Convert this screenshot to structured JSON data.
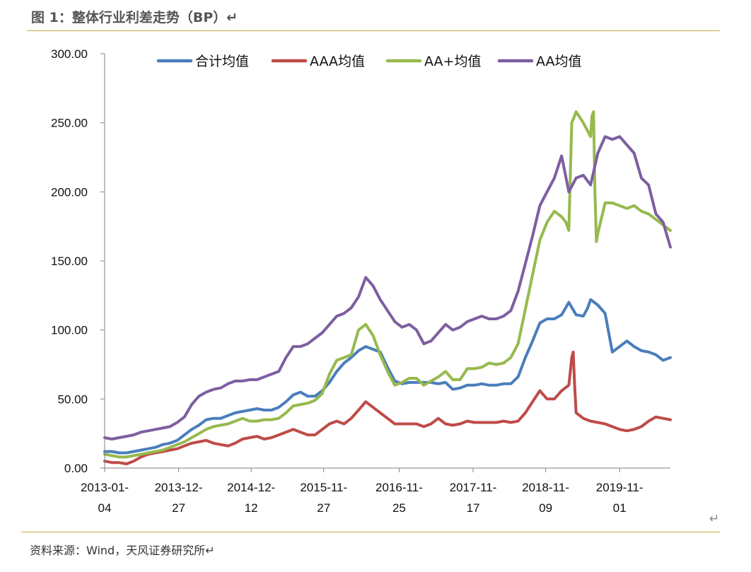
{
  "figure": {
    "title": "图 1：整体行业利差走势（BP）↵",
    "source": "资料来源：Wind，天风证券研究所↵",
    "return_mark": "↵"
  },
  "chart_data": {
    "type": "line",
    "title": "整体行业利差走势（BP）",
    "xlabel": "",
    "ylabel": "",
    "ylim": [
      0,
      300
    ],
    "yticks": [
      "0.00",
      "50.00",
      "100.00",
      "150.00",
      "200.00",
      "250.00",
      "300.00"
    ],
    "xticks": [
      {
        "label": "2013-01-\n04",
        "t": 0
      },
      {
        "label": "2013-12-\n27",
        "t": 51
      },
      {
        "label": "2014-12-\n12",
        "t": 101
      },
      {
        "label": "2015-11-\n27",
        "t": 151
      },
      {
        "label": "2016-11-\n25",
        "t": 203
      },
      {
        "label": "2017-11-\n17",
        "t": 254
      },
      {
        "label": "2018-11-\n09",
        "t": 304
      },
      {
        "label": "2019-11-\n01",
        "t": 355
      }
    ],
    "t_max": 390,
    "legend_position": "top",
    "series": [
      {
        "name": "合计均值",
        "color": "#4a7ebb",
        "x": [
          0,
          5,
          10,
          15,
          20,
          25,
          30,
          35,
          40,
          45,
          50,
          55,
          60,
          65,
          70,
          75,
          80,
          85,
          90,
          95,
          100,
          105,
          110,
          115,
          120,
          125,
          130,
          135,
          140,
          145,
          150,
          155,
          160,
          165,
          170,
          175,
          180,
          185,
          190,
          195,
          200,
          205,
          210,
          215,
          220,
          225,
          230,
          235,
          240,
          245,
          250,
          255,
          260,
          265,
          270,
          275,
          280,
          285,
          290,
          295,
          300,
          305,
          310,
          315,
          320,
          325,
          330,
          333,
          335,
          340,
          345,
          350,
          355,
          360,
          365,
          370,
          375,
          380,
          385,
          390
        ],
        "y": [
          12,
          12,
          11,
          11,
          12,
          13,
          14,
          15,
          17,
          18,
          20,
          24,
          28,
          31,
          35,
          36,
          36,
          38,
          40,
          41,
          42,
          43,
          42,
          42,
          44,
          48,
          53,
          55,
          52,
          52,
          56,
          62,
          70,
          76,
          80,
          85,
          88,
          86,
          84,
          73,
          63,
          61,
          62,
          62,
          62,
          62,
          61,
          62,
          57,
          58,
          60,
          60,
          61,
          60,
          60,
          61,
          61,
          66,
          80,
          92,
          105,
          108,
          108,
          111,
          120,
          111,
          110,
          116,
          122,
          118,
          112,
          84,
          88,
          92,
          88,
          85,
          84,
          82,
          78,
          80
        ]
      },
      {
        "name": "AAA均值",
        "color": "#be4b48",
        "x": [
          0,
          5,
          10,
          15,
          20,
          25,
          30,
          35,
          40,
          45,
          50,
          55,
          60,
          65,
          70,
          75,
          80,
          85,
          90,
          95,
          100,
          105,
          110,
          115,
          120,
          125,
          130,
          135,
          140,
          145,
          150,
          155,
          160,
          165,
          170,
          175,
          180,
          185,
          190,
          195,
          200,
          205,
          210,
          215,
          220,
          225,
          230,
          235,
          240,
          245,
          250,
          255,
          260,
          265,
          270,
          275,
          280,
          285,
          290,
          295,
          300,
          305,
          310,
          315,
          320,
          321,
          322,
          323,
          324,
          325,
          330,
          335,
          340,
          345,
          350,
          355,
          360,
          365,
          370,
          375,
          380,
          385,
          390
        ],
        "y": [
          5,
          4,
          4,
          3,
          5,
          8,
          10,
          11,
          12,
          13,
          14,
          16,
          18,
          19,
          20,
          18,
          17,
          16,
          18,
          21,
          22,
          23,
          21,
          22,
          24,
          26,
          28,
          26,
          24,
          24,
          28,
          32,
          34,
          32,
          36,
          42,
          48,
          44,
          40,
          36,
          32,
          32,
          32,
          32,
          30,
          32,
          36,
          32,
          31,
          32,
          34,
          33,
          33,
          33,
          33,
          34,
          33,
          34,
          40,
          48,
          56,
          50,
          50,
          56,
          60,
          70,
          80,
          84,
          60,
          40,
          36,
          34,
          33,
          32,
          30,
          28,
          27,
          28,
          30,
          34,
          37,
          36,
          35
        ]
      },
      {
        "name": "AA+均值",
        "color": "#97b94e",
        "x": [
          0,
          5,
          10,
          15,
          20,
          25,
          30,
          35,
          40,
          45,
          50,
          55,
          60,
          65,
          70,
          75,
          80,
          85,
          90,
          95,
          100,
          105,
          110,
          115,
          120,
          125,
          130,
          135,
          140,
          145,
          150,
          155,
          160,
          165,
          170,
          175,
          180,
          185,
          190,
          195,
          200,
          205,
          210,
          215,
          220,
          225,
          230,
          235,
          240,
          245,
          250,
          255,
          260,
          265,
          270,
          275,
          280,
          285,
          290,
          295,
          300,
          305,
          310,
          315,
          318,
          320,
          322,
          324,
          325,
          330,
          335,
          336,
          337,
          338,
          339,
          340,
          345,
          350,
          355,
          360,
          365,
          370,
          375,
          380,
          385,
          390
        ],
        "y": [
          10,
          9,
          8,
          8,
          9,
          10,
          11,
          12,
          13,
          15,
          17,
          19,
          22,
          25,
          28,
          30,
          31,
          32,
          34,
          36,
          34,
          34,
          35,
          35,
          36,
          40,
          45,
          46,
          47,
          49,
          54,
          68,
          78,
          80,
          82,
          100,
          104,
          96,
          82,
          70,
          60,
          62,
          65,
          65,
          60,
          63,
          66,
          70,
          64,
          64,
          72,
          72,
          73,
          76,
          75,
          76,
          80,
          90,
          115,
          140,
          165,
          178,
          186,
          182,
          178,
          172,
          250,
          255,
          258,
          250,
          240,
          255,
          258,
          200,
          164,
          170,
          192,
          192,
          190,
          188,
          190,
          186,
          184,
          180,
          176,
          172
        ]
      },
      {
        "name": "AA均值",
        "color": "#7d5fa0",
        "x": [
          0,
          5,
          10,
          15,
          20,
          25,
          30,
          35,
          40,
          45,
          50,
          55,
          60,
          65,
          70,
          75,
          80,
          85,
          90,
          95,
          100,
          105,
          110,
          115,
          120,
          125,
          130,
          135,
          140,
          145,
          150,
          155,
          160,
          165,
          170,
          175,
          180,
          185,
          190,
          195,
          200,
          205,
          210,
          215,
          220,
          225,
          230,
          235,
          240,
          245,
          250,
          255,
          260,
          265,
          270,
          275,
          280,
          285,
          290,
          295,
          300,
          305,
          310,
          315,
          320,
          325,
          330,
          335,
          340,
          345,
          350,
          355,
          360,
          365,
          370,
          375,
          380,
          385,
          390
        ],
        "y": [
          22,
          21,
          22,
          23,
          24,
          26,
          27,
          28,
          29,
          30,
          33,
          37,
          46,
          52,
          55,
          57,
          58,
          61,
          63,
          63,
          64,
          64,
          66,
          68,
          70,
          80,
          88,
          88,
          90,
          94,
          98,
          104,
          110,
          112,
          116,
          124,
          138,
          132,
          122,
          114,
          106,
          102,
          104,
          100,
          90,
          92,
          98,
          104,
          100,
          102,
          106,
          108,
          110,
          108,
          108,
          110,
          114,
          128,
          148,
          168,
          190,
          200,
          210,
          226,
          200,
          210,
          212,
          205,
          228,
          240,
          238,
          240,
          234,
          228,
          210,
          205,
          184,
          178,
          160
        ]
      }
    ]
  }
}
